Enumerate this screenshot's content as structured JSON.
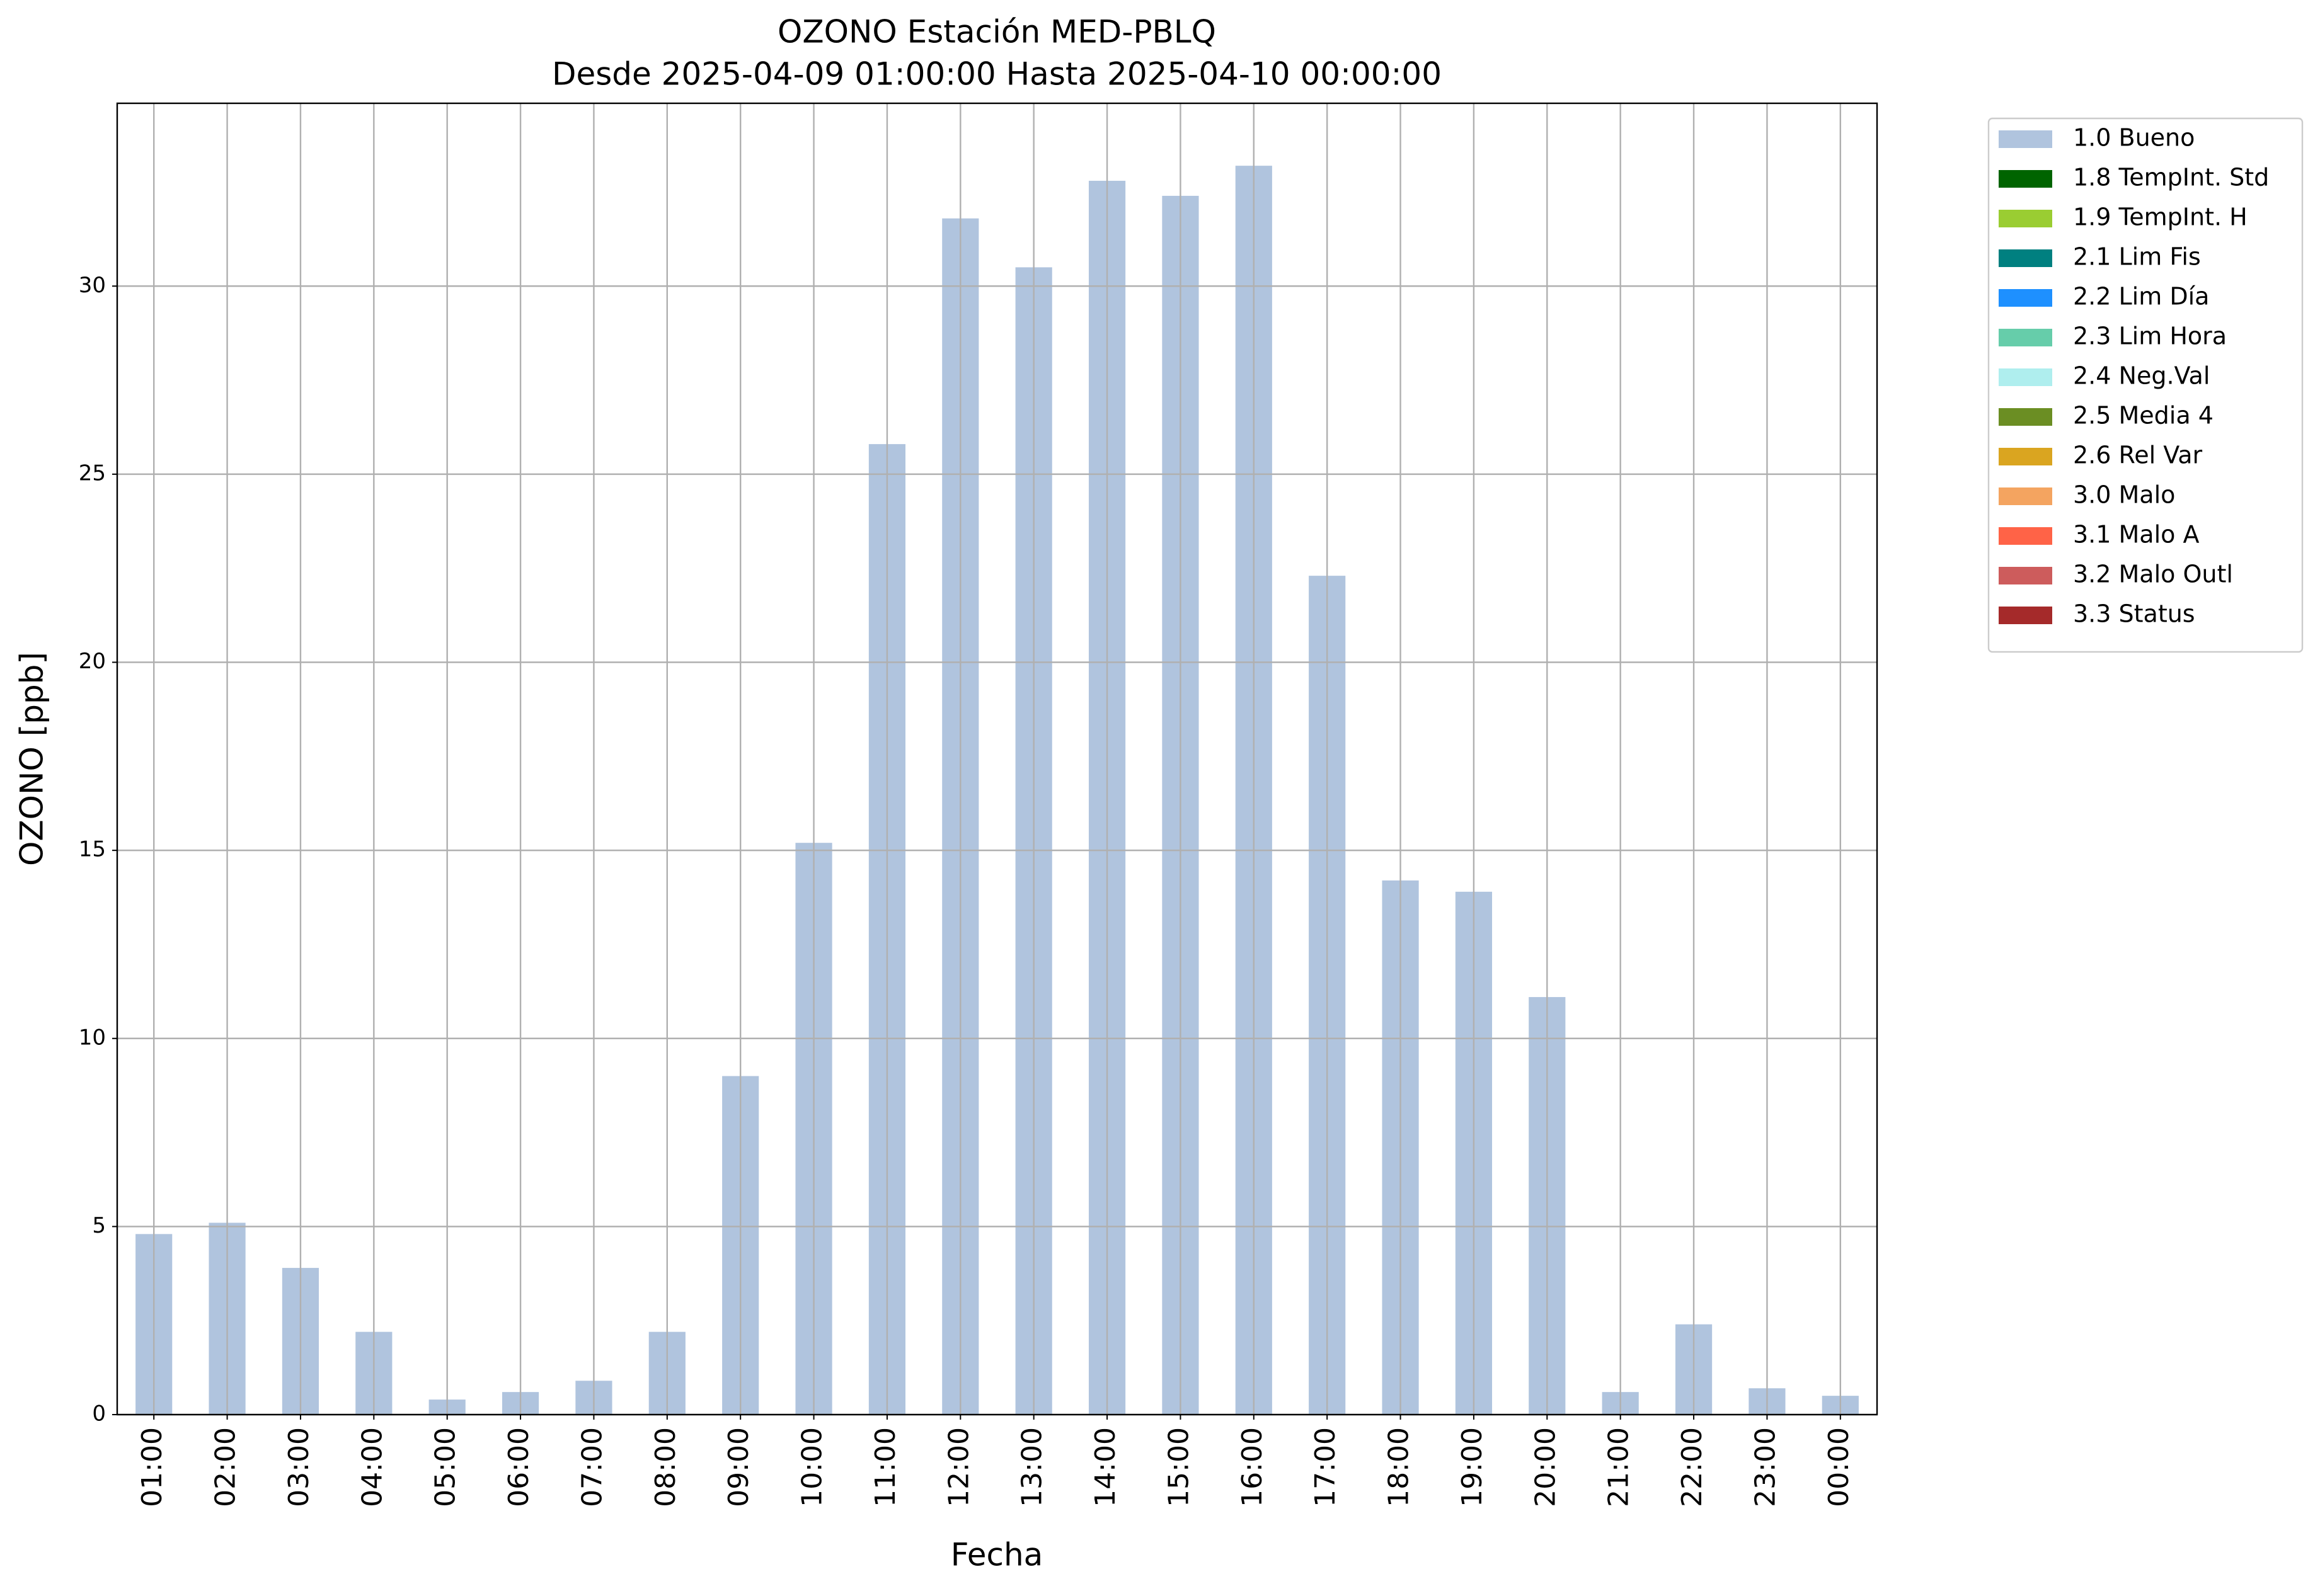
{
  "chart_data": {
    "type": "stacked-bar",
    "title": "OZONO Estación MED-PBLQ",
    "subtitle": "Desde 2025-04-09 01:00:00 Hasta 2025-04-10 00:00:00",
    "x_label": "Fecha",
    "y_label": "OZONO [ppb]",
    "categories": [
      "01:00",
      "02:00",
      "03:00",
      "04:00",
      "05:00",
      "06:00",
      "07:00",
      "08:00",
      "09:00",
      "10:00",
      "11:00",
      "12:00",
      "13:00",
      "14:00",
      "15:00",
      "16:00",
      "17:00",
      "18:00",
      "19:00",
      "20:00",
      "21:00",
      "22:00",
      "23:00",
      "00:00"
    ],
    "series": [
      {
        "name": "1.0 Bueno",
        "color": "#b0c4de",
        "values": [
          4.8,
          5.1,
          3.9,
          2.2,
          0.4,
          0.6,
          0.9,
          2.2,
          9.0,
          15.2,
          25.8,
          31.8,
          30.5,
          32.8,
          32.4,
          33.2,
          22.3,
          14.2,
          13.9,
          11.1,
          0.6,
          2.4,
          0.7,
          0.5
        ]
      },
      {
        "name": "1.8 TempInt. Std",
        "color": "#006400",
        "values": [
          0,
          0,
          0,
          0,
          0,
          0,
          0,
          0,
          0,
          0,
          0,
          0,
          0,
          0,
          0,
          0,
          0,
          0,
          0,
          0,
          0,
          0,
          0,
          0
        ]
      },
      {
        "name": "1.9 TempInt. H",
        "color": "#9acd32",
        "values": [
          0,
          0,
          0,
          0,
          0,
          0,
          0,
          0,
          0,
          0,
          0,
          0,
          0,
          0,
          0,
          0,
          0,
          0,
          0,
          0,
          0,
          0,
          0,
          0
        ]
      },
      {
        "name": "2.1 Lim Fis",
        "color": "#008080",
        "values": [
          0,
          0,
          0,
          0,
          0,
          0,
          0,
          0,
          0,
          0,
          0,
          0,
          0,
          0,
          0,
          0,
          0,
          0,
          0,
          0,
          0,
          0,
          0,
          0
        ]
      },
      {
        "name": "2.2 Lim Día",
        "color": "#1e90ff",
        "values": [
          0,
          0,
          0,
          0,
          0,
          0,
          0,
          0,
          0,
          0,
          0,
          0,
          0,
          0,
          0,
          0,
          0,
          0,
          0,
          0,
          0,
          0,
          0,
          0
        ]
      },
      {
        "name": "2.3 Lim Hora",
        "color": "#66cdaa",
        "values": [
          0,
          0,
          0,
          0,
          0,
          0,
          0,
          0,
          0,
          0,
          0,
          0,
          0,
          0,
          0,
          0,
          0,
          0,
          0,
          0,
          0,
          0,
          0,
          0
        ]
      },
      {
        "name": "2.4 Neg.Val",
        "color": "#afeeee",
        "values": [
          0,
          0,
          0,
          0,
          0,
          0,
          0,
          0,
          0,
          0,
          0,
          0,
          0,
          0,
          0,
          0,
          0,
          0,
          0,
          0,
          0,
          0,
          0,
          0
        ]
      },
      {
        "name": "2.5 Media 4",
        "color": "#6b8e23",
        "values": [
          0,
          0,
          0,
          0,
          0,
          0,
          0,
          0,
          0,
          0,
          0,
          0,
          0,
          0,
          0,
          0,
          0,
          0,
          0,
          0,
          0,
          0,
          0,
          0
        ]
      },
      {
        "name": "2.6 Rel Var",
        "color": "#daa520",
        "values": [
          0,
          0,
          0,
          0,
          0,
          0,
          0,
          0,
          0,
          0,
          0,
          0,
          0,
          0,
          0,
          0,
          0,
          0,
          0,
          0,
          0,
          0,
          0,
          0
        ]
      },
      {
        "name": "3.0 Malo",
        "color": "#f4a460",
        "values": [
          0,
          0,
          0,
          0,
          0,
          0,
          0,
          0,
          0,
          0,
          0,
          0,
          0,
          0,
          0,
          0,
          0,
          0,
          0,
          0,
          0,
          0,
          0,
          0
        ]
      },
      {
        "name": "3.1 Malo A",
        "color": "#ff6347",
        "values": [
          0,
          0,
          0,
          0,
          0,
          0,
          0,
          0,
          0,
          0,
          0,
          0,
          0,
          0,
          0,
          0,
          0,
          0,
          0,
          0,
          0,
          0,
          0,
          0
        ]
      },
      {
        "name": "3.2 Malo Outl",
        "color": "#cd5c5c",
        "values": [
          0,
          0,
          0,
          0,
          0,
          0,
          0,
          0,
          0,
          0,
          0,
          0,
          0,
          0,
          0,
          0,
          0,
          0,
          0,
          0,
          0,
          0,
          0,
          0
        ]
      },
      {
        "name": "3.3 Status",
        "color": "#a52a2a",
        "values": [
          0,
          0,
          0,
          0,
          0,
          0,
          0,
          0,
          0,
          0,
          0,
          0,
          0,
          0,
          0,
          0,
          0,
          0,
          0,
          0,
          0,
          0,
          0,
          0
        ]
      }
    ],
    "ylim": [
      0,
      34.86
    ],
    "yticks": [
      0,
      5,
      10,
      15,
      20,
      25,
      30
    ],
    "grid": true,
    "legend": "outside-right"
  }
}
